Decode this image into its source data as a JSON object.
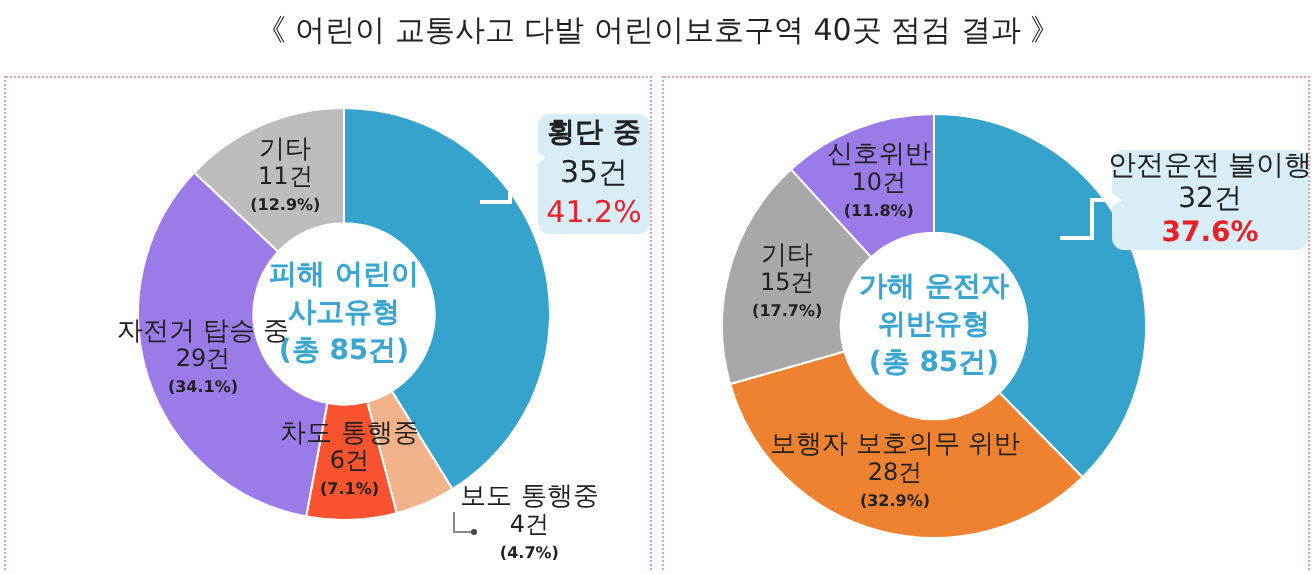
{
  "chart_data": [
    {
      "type": "donut",
      "title": "《 어린이 교통사고 다발 어린이보호구역 40곳 점검 결과 》",
      "annotations": [
        "피해 어린이\n사고유형\n(총 85건)"
      ],
      "legend": false,
      "categories": [
        "횡단 중",
        "보도 통행중",
        "차도 통행중",
        "자전거 탑승 중",
        "기타"
      ],
      "values": [
        35,
        4,
        6,
        29,
        11
      ],
      "colors": [
        "#35a3cc",
        "#f3b38a",
        "#fb5230",
        "#9b7be8",
        "#bdbdbd"
      ],
      "value_labels": [
        "35건\n41.2%",
        "4건\n(4.7%)",
        "6건\n(7.1%)",
        "29건\n(34.1%)",
        "11건\n(12.9%)"
      ]
    },
    {
      "type": "donut",
      "annotations": [
        "가해 운전자\n위반유형\n(총 85건)"
      ],
      "legend": false,
      "categories": [
        "안전운전 불이행",
        "보행자 보호의무 위반",
        "기타",
        "신호위반"
      ],
      "values": [
        32,
        28,
        15,
        10
      ],
      "colors": [
        "#35a3cc",
        "#ef8230",
        "#a8a8a8",
        "#9b7be8"
      ],
      "value_labels": [
        "32건\n37.6%",
        "28건\n(32.9%)",
        "15건\n(17.7%)",
        "10건\n(11.8%)"
      ]
    }
  ]
}
